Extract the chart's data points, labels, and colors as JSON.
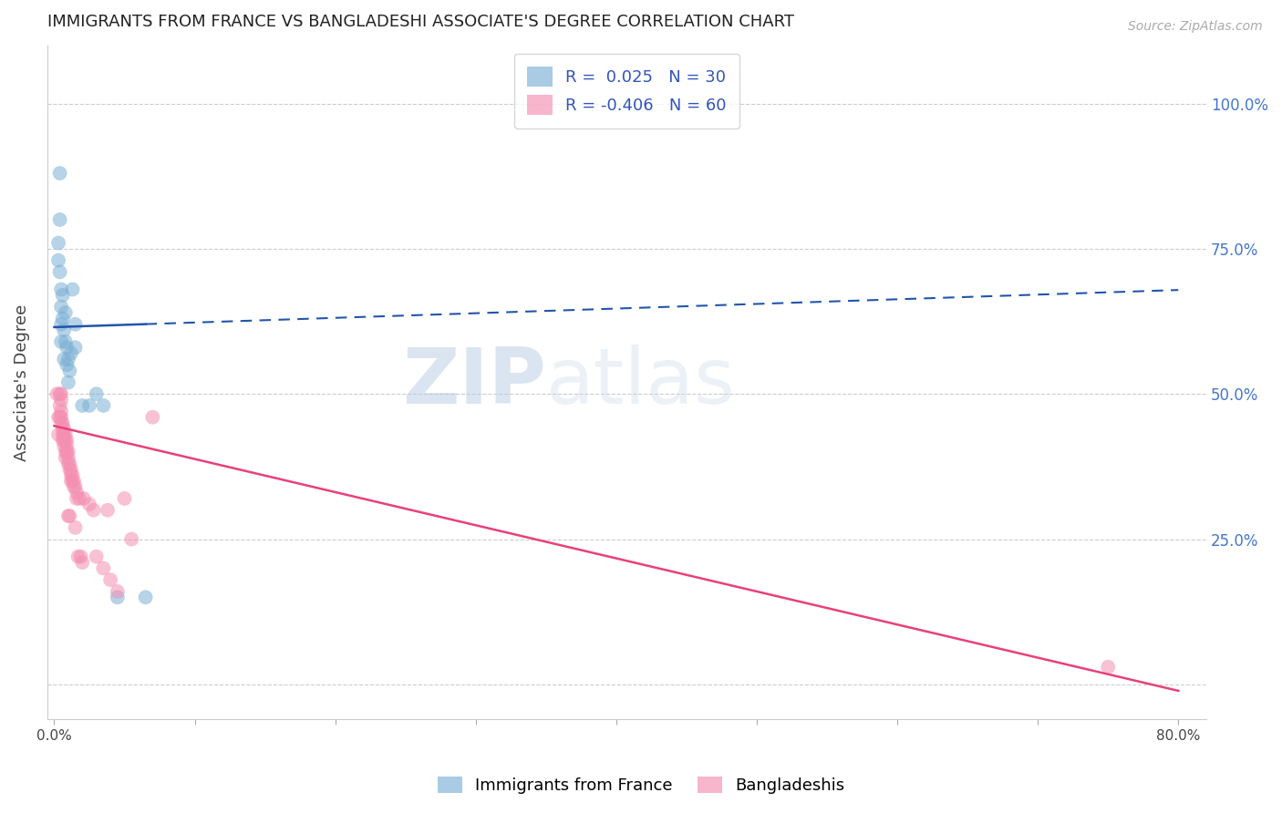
{
  "title": "IMMIGRANTS FROM FRANCE VS BANGLADESHI ASSOCIATE'S DEGREE CORRELATION CHART",
  "source": "Source: ZipAtlas.com",
  "ylabel_left": "Associate's Degree",
  "ylabel_right_labels": [
    "100.0%",
    "75.0%",
    "50.0%",
    "25.0%"
  ],
  "ylabel_right_values": [
    1.0,
    0.75,
    0.5,
    0.25
  ],
  "xlim": [
    -0.5,
    82.0
  ],
  "ylim": [
    -0.06,
    1.1
  ],
  "blue_R": 0.025,
  "blue_N": 30,
  "pink_R": -0.406,
  "pink_N": 60,
  "blue_color": "#7BAFD4",
  "pink_color": "#F48FB1",
  "trend_blue_color": "#2255AA",
  "trend_pink_color": "#E8417A",
  "legend_label_blue": "Immigrants from France",
  "legend_label_pink": "Bangladeshis",
  "watermark_zip": "ZIP",
  "watermark_atlas": "atlas",
  "blue_scatter_x": [
    0.3,
    0.3,
    0.4,
    0.4,
    0.4,
    0.5,
    0.5,
    0.5,
    0.5,
    0.6,
    0.6,
    0.7,
    0.7,
    0.8,
    0.8,
    0.9,
    0.9,
    1.0,
    1.0,
    1.1,
    1.2,
    1.3,
    1.5,
    1.5,
    2.0,
    2.5,
    3.0,
    3.5,
    4.5,
    6.5
  ],
  "blue_scatter_y": [
    0.76,
    0.73,
    0.88,
    0.8,
    0.71,
    0.68,
    0.65,
    0.62,
    0.59,
    0.67,
    0.63,
    0.56,
    0.61,
    0.59,
    0.64,
    0.55,
    0.58,
    0.52,
    0.56,
    0.54,
    0.57,
    0.68,
    0.62,
    0.58,
    0.48,
    0.48,
    0.5,
    0.48,
    0.15,
    0.15
  ],
  "pink_scatter_x": [
    0.2,
    0.3,
    0.3,
    0.4,
    0.4,
    0.4,
    0.5,
    0.5,
    0.5,
    0.5,
    0.5,
    0.6,
    0.6,
    0.6,
    0.6,
    0.7,
    0.7,
    0.7,
    0.7,
    0.8,
    0.8,
    0.8,
    0.8,
    0.9,
    0.9,
    0.9,
    1.0,
    1.0,
    1.0,
    1.0,
    1.1,
    1.1,
    1.1,
    1.2,
    1.2,
    1.2,
    1.3,
    1.3,
    1.4,
    1.4,
    1.5,
    1.5,
    1.6,
    1.6,
    1.7,
    1.8,
    1.9,
    2.0,
    2.1,
    2.5,
    2.8,
    3.0,
    3.5,
    3.8,
    4.0,
    4.5,
    5.0,
    5.5,
    7.0,
    75.0
  ],
  "pink_scatter_y": [
    0.5,
    0.46,
    0.43,
    0.5,
    0.48,
    0.46,
    0.5,
    0.49,
    0.47,
    0.46,
    0.45,
    0.45,
    0.44,
    0.43,
    0.42,
    0.44,
    0.43,
    0.42,
    0.41,
    0.43,
    0.42,
    0.4,
    0.39,
    0.42,
    0.41,
    0.4,
    0.4,
    0.39,
    0.38,
    0.29,
    0.38,
    0.37,
    0.29,
    0.37,
    0.36,
    0.35,
    0.36,
    0.35,
    0.35,
    0.34,
    0.34,
    0.27,
    0.33,
    0.32,
    0.22,
    0.32,
    0.22,
    0.21,
    0.32,
    0.31,
    0.3,
    0.22,
    0.2,
    0.3,
    0.18,
    0.16,
    0.32,
    0.25,
    0.46,
    0.03
  ],
  "blue_trend_x0": 0.0,
  "blue_trend_x_solid_end": 6.5,
  "blue_trend_x_dash_end": 80.0,
  "blue_trend_y0": 0.615,
  "blue_trend_slope": 0.0008,
  "pink_trend_x0": 0.0,
  "pink_trend_x_end": 80.0,
  "pink_trend_y0": 0.445,
  "pink_trend_slope": -0.0057
}
